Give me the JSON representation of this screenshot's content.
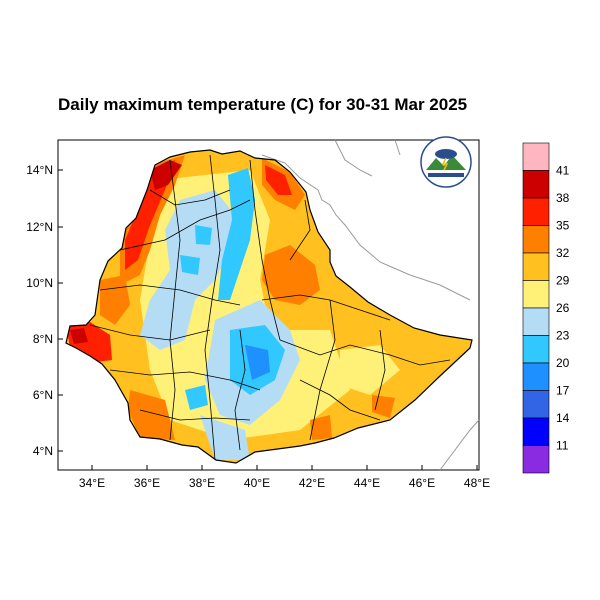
{
  "title": "Daily maximum temperature (C) for 30-31 Mar 2025",
  "map": {
    "region": "Ethiopia",
    "variable": "Daily maximum temperature",
    "units": "C",
    "lat_ticks": [
      "14°N",
      "12°N",
      "10°N",
      "8°N",
      "6°N",
      "4°N"
    ],
    "lon_ticks": [
      "34°E",
      "36°E",
      "38°E",
      "40°E",
      "42°E",
      "44°E",
      "46°E",
      "48°E"
    ]
  },
  "colorbar": {
    "labels": [
      "41",
      "38",
      "35",
      "32",
      "29",
      "26",
      "23",
      "20",
      "17",
      "14",
      "11"
    ],
    "colors": [
      "#ffb6c1",
      "#cd0000",
      "#ff2000",
      "#ff8000",
      "#ffc020",
      "#fff078",
      "#b4dcf5",
      "#30c8ff",
      "#1e90ff",
      "#3264e6",
      "#0000ff",
      "#8a2be2"
    ]
  },
  "logo": {
    "text": "Ethiopian Meteorology Institute"
  }
}
